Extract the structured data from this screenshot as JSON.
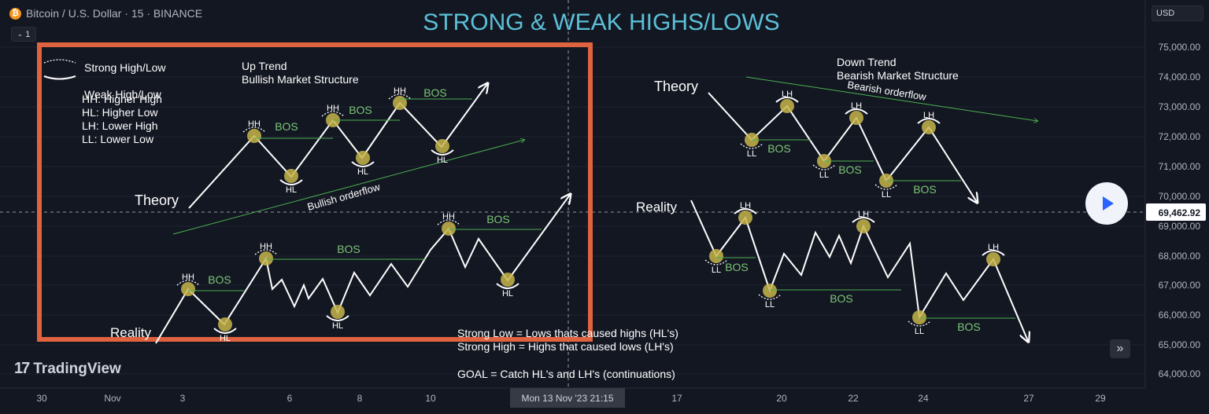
{
  "header": {
    "symbol": "Bitcoin / U.S. Dollar · 15 · BINANCE",
    "coin_glyph": "₿",
    "version_label": "1",
    "currency": "USD"
  },
  "branding": {
    "name": "TradingView",
    "logo_mark": "17"
  },
  "chart_data": {
    "type": "line",
    "title": "STRONG & WEAK HIGHS/LOWS",
    "crosshair_price_label": "69,462.92",
    "crosshair_time_label": "Mon 13 Nov '23   21:15",
    "y_axis": {
      "ticks": [
        "75,000.00",
        "74,000.00",
        "73,000.00",
        "72,000.00",
        "71,000.00",
        "70,000.00",
        "69,000.00",
        "68,000.00",
        "67,000.00",
        "66,000.00",
        "65,000.00",
        "64,000.00"
      ]
    },
    "x_axis": {
      "ticks": [
        "30",
        "Nov",
        "3",
        "6",
        "8",
        "10",
        "17",
        "20",
        "22",
        "24",
        "27",
        "29"
      ]
    },
    "legend": {
      "strong": "Strong High/Low",
      "weak": "Weak High/Low"
    },
    "definitions": [
      "HH:  Higher High",
      "HL:   Higher Low",
      "LH:   Lower High",
      "LL:   Lower Low"
    ],
    "notes": [
      "Strong Low = Lows thats caused highs (HL's)",
      "Strong High =  Highs that caused lows (LH's)",
      "GOAL = Catch HL's and LH's (continuations)"
    ],
    "panels": {
      "up": {
        "line1": "Up Trend",
        "line2": "Bullish Market Structure",
        "orderflow": "Bullish orderflow",
        "theory_label": "Theory",
        "reality_label": "Reality"
      },
      "down": {
        "line1": "Down Trend",
        "line2": "Bearish Market Structure",
        "orderflow": "Bearish orderflow",
        "theory_label": "Theory",
        "reality_label": "Reality"
      }
    },
    "colors": {
      "background": "#131722",
      "title": "#5bc0d8",
      "frame": "#e0633f",
      "path": "#ffffff",
      "bos": "#4caf50",
      "bos_text": "#7cc576",
      "swing": "#c7b54a",
      "grid": "#1f2330",
      "axis_text": "#b2b5be"
    },
    "labels": {
      "bos": "BOS",
      "hh": "HH",
      "hl": "HL",
      "lh": "LH",
      "ll": "LL"
    }
  }
}
